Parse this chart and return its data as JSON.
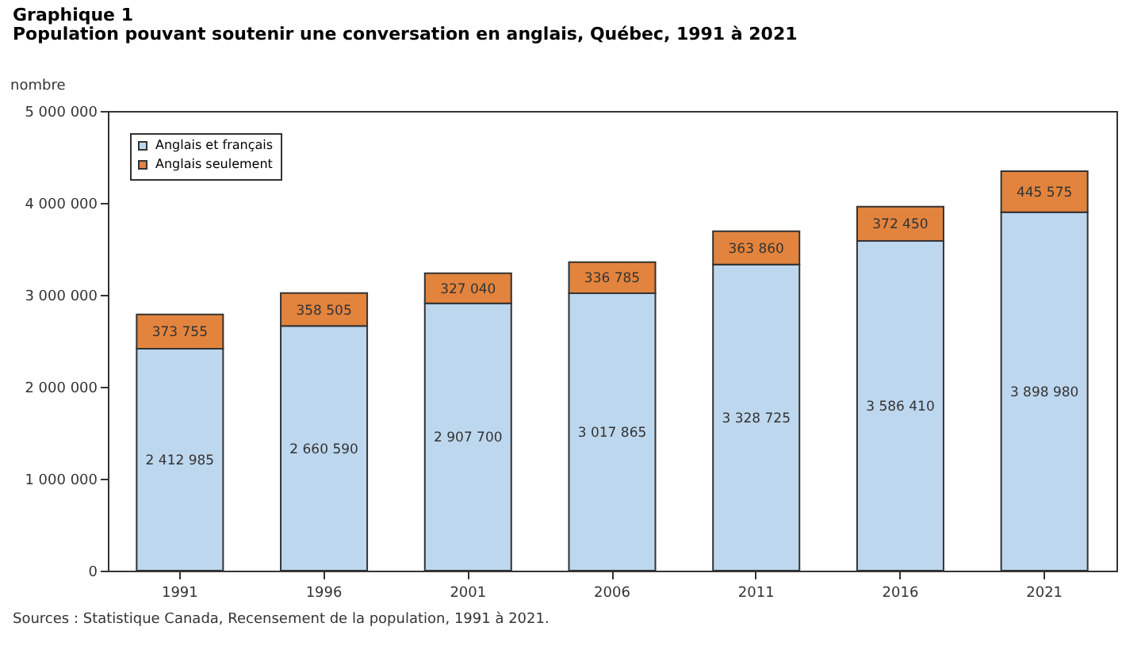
{
  "chart_data": {
    "type": "bar",
    "stacked": true,
    "title": "Graphique 1",
    "subtitle": "Population pouvant soutenir une conversation en anglais, Québec, 1991 à 2021",
    "ylabel": "nombre",
    "categories": [
      "1991",
      "1996",
      "2001",
      "2006",
      "2011",
      "2016",
      "2021"
    ],
    "series": [
      {
        "name": "Anglais et français",
        "color": "#bdd7ee",
        "values": [
          2412985,
          2660590,
          2907700,
          3017865,
          3328725,
          3586410,
          3898980
        ],
        "value_labels": [
          "2 412 985",
          "2 660 590",
          "2 907 700",
          "3 017 865",
          "3 328 725",
          "3 586 410",
          "3 898 980"
        ]
      },
      {
        "name": "Anglais seulement",
        "color": "#e2843e",
        "values": [
          373755,
          358505,
          327040,
          336785,
          363860,
          372450,
          445575
        ],
        "value_labels": [
          "373 755",
          "358 505",
          "327 040",
          "336 785",
          "363 860",
          "372 450",
          "445 575"
        ]
      }
    ],
    "ylim": [
      0,
      5000000
    ],
    "yticks": [
      0,
      {
        "value": 1000000,
        "label": "1 000 000"
      },
      {
        "value": 2000000,
        "label": "2 000 000"
      },
      {
        "value": 3000000,
        "label": "3 000 000"
      },
      {
        "value": 4000000,
        "label": "4 000 000"
      },
      {
        "value": 5000000,
        "label": "5 000 000"
      }
    ],
    "grid": false,
    "legend": "top left",
    "annotations": [
      "Sources : Statistique Canada, Recensement de la population, 1991 à 2021."
    ]
  }
}
